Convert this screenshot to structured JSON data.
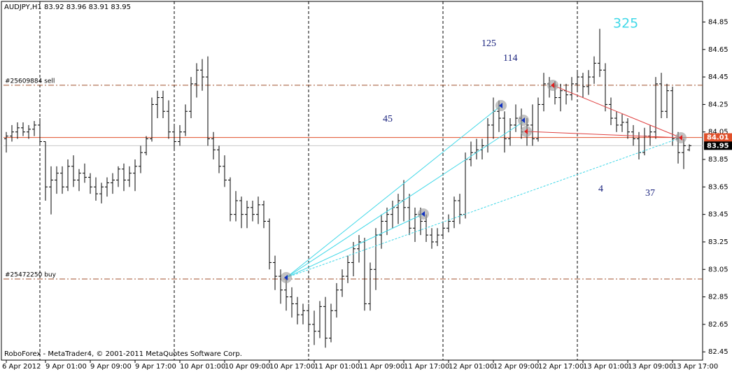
{
  "chart_data": {
    "type": "ohlc",
    "title": "AUDJPY,H1 83.92 83.96 83.91 83.95",
    "footer": "RoboForex - MetaTrader4, © 2001-2011 MetaQuotes Software Corp.",
    "color": "#000000",
    "grid": false,
    "ylim": [
      82.39,
      85.01
    ],
    "yticks": [
      82.45,
      82.65,
      82.85,
      83.05,
      83.25,
      83.45,
      83.65,
      83.85,
      84.05,
      84.25,
      84.45,
      84.65,
      84.85
    ],
    "categories": [
      "6 Apr 2012",
      null,
      null,
      null,
      null,
      null,
      null,
      "9 Apr 01:00",
      null,
      null,
      null,
      null,
      null,
      null,
      null,
      "9 Apr 09:00",
      null,
      null,
      null,
      null,
      null,
      null,
      null,
      "9 Apr 17:00",
      null,
      null,
      null,
      null,
      null,
      null,
      null,
      "10 Apr 01:00",
      null,
      null,
      null,
      null,
      null,
      null,
      null,
      "10 Apr 09:00",
      null,
      null,
      null,
      null,
      null,
      null,
      null,
      "10 Apr 17:00",
      null,
      null,
      null,
      null,
      null,
      null,
      null,
      "11 Apr 01:00",
      null,
      null,
      null,
      null,
      null,
      null,
      null,
      "11 Apr 09:00",
      null,
      null,
      null,
      null,
      null,
      null,
      null,
      "11 Apr 17:00",
      null,
      null,
      null,
      null,
      null,
      null,
      null,
      "12 Apr 01:00",
      null,
      null,
      null,
      null,
      null,
      null,
      null,
      "12 Apr 09:00",
      null,
      null,
      null,
      null,
      null,
      null,
      null,
      "12 Apr 17:00",
      null,
      null,
      null,
      null,
      null,
      null,
      null,
      "13 Apr 01:00",
      null,
      null,
      null,
      null,
      null,
      null,
      null,
      "13 Apr 09:00",
      null,
      null,
      null,
      null,
      null,
      null,
      null,
      "13 Apr 17:00",
      null,
      null,
      null
    ],
    "open": [
      84.0,
      84.02,
      84.05,
      84.08,
      84.05,
      84.07,
      84.1,
      83.98,
      83.65,
      83.7,
      83.75,
      83.65,
      83.8,
      83.7,
      83.75,
      83.72,
      83.65,
      83.6,
      83.65,
      83.68,
      83.7,
      83.78,
      83.7,
      83.75,
      83.8,
      83.9,
      84.0,
      84.25,
      84.3,
      84.2,
      84.05,
      83.98,
      84.05,
      84.2,
      84.4,
      84.5,
      84.45,
      84.0,
      83.92,
      83.8,
      83.7,
      83.45,
      83.55,
      83.45,
      83.5,
      83.45,
      83.52,
      83.4,
      83.1,
      83.0,
      82.9,
      82.85,
      82.8,
      82.72,
      82.75,
      82.65,
      82.6,
      82.78,
      82.55,
      82.75,
      82.9,
      83.0,
      83.1,
      83.2,
      83.25,
      82.8,
      83.05,
      83.3,
      83.4,
      83.45,
      83.5,
      83.55,
      83.5,
      83.35,
      83.45,
      83.4,
      83.3,
      83.25,
      83.3,
      83.35,
      83.4,
      83.55,
      83.45,
      83.85,
      83.9,
      83.92,
      83.95,
      84.1,
      84.2,
      84.15,
      84.0,
      84.1,
      84.15,
      84.05,
      84.1,
      84.0,
      84.25,
      84.4,
      84.38,
      84.3,
      84.35,
      84.32,
      84.4,
      84.45,
      84.38,
      84.45,
      84.55,
      84.5,
      84.25,
      84.15,
      84.1,
      84.12,
      84.05,
      84.0,
      83.9,
      84.02,
      84.05,
      84.4,
      84.2,
      84.35,
      84.0,
      83.9,
      83.92
    ],
    "high": [
      84.05,
      84.1,
      84.12,
      84.12,
      84.1,
      84.13,
      84.15,
      83.98,
      83.8,
      83.8,
      83.8,
      83.85,
      83.88,
      83.78,
      83.82,
      83.75,
      83.72,
      83.68,
      83.72,
      83.75,
      83.8,
      83.82,
      83.8,
      83.85,
      83.95,
      84.02,
      84.3,
      84.35,
      84.35,
      84.28,
      84.1,
      84.1,
      84.25,
      84.45,
      84.55,
      84.58,
      84.6,
      84.05,
      83.95,
      83.88,
      83.72,
      83.62,
      83.58,
      83.55,
      83.55,
      83.58,
      83.55,
      83.42,
      83.15,
      83.05,
      83.0,
      82.92,
      82.85,
      82.8,
      82.8,
      82.75,
      82.82,
      82.85,
      82.8,
      82.95,
      83.05,
      83.15,
      83.25,
      83.3,
      83.28,
      83.1,
      83.35,
      83.45,
      83.5,
      83.55,
      83.6,
      83.7,
      83.6,
      83.5,
      83.5,
      83.45,
      83.35,
      83.35,
      83.4,
      83.45,
      83.58,
      83.6,
      83.9,
      83.98,
      84.0,
      84.0,
      84.15,
      84.3,
      84.28,
      84.2,
      84.15,
      84.25,
      84.22,
      84.15,
      84.25,
      84.3,
      84.48,
      84.45,
      84.42,
      84.4,
      84.4,
      84.45,
      84.5,
      84.48,
      84.5,
      84.6,
      84.8,
      84.55,
      84.3,
      84.2,
      84.18,
      84.15,
      84.1,
      84.05,
      84.08,
      84.1,
      84.45,
      84.48,
      84.4,
      84.38,
      84.05,
      84.0,
      83.96
    ],
    "low": [
      83.9,
      83.98,
      84.0,
      84.02,
      84.0,
      84.02,
      83.95,
      83.55,
      83.45,
      83.6,
      83.6,
      83.62,
      83.65,
      83.62,
      83.68,
      83.6,
      83.55,
      83.53,
      83.58,
      83.6,
      83.65,
      83.62,
      83.65,
      83.62,
      83.75,
      83.88,
      83.98,
      84.15,
      84.15,
      84.0,
      83.92,
      83.95,
      84.02,
      84.15,
      84.3,
      84.35,
      83.95,
      83.85,
      83.75,
      83.65,
      83.4,
      83.4,
      83.35,
      83.35,
      83.4,
      83.38,
      83.35,
      83.05,
      82.9,
      82.8,
      82.75,
      82.7,
      82.65,
      82.65,
      82.6,
      82.5,
      82.55,
      82.48,
      82.52,
      82.7,
      82.85,
      82.95,
      83.0,
      83.1,
      82.75,
      82.75,
      82.9,
      83.2,
      83.3,
      83.35,
      83.38,
      83.4,
      83.3,
      83.25,
      83.3,
      83.25,
      83.2,
      83.22,
      83.28,
      83.32,
      83.35,
      83.38,
      83.42,
      83.8,
      83.85,
      83.85,
      83.9,
      84.0,
      84.05,
      83.9,
      83.95,
      84.05,
      84.0,
      83.95,
      83.95,
      83.98,
      84.2,
      84.3,
      84.25,
      84.2,
      84.25,
      84.28,
      84.35,
      84.3,
      84.32,
      84.4,
      84.45,
      84.2,
      84.1,
      84.05,
      84.05,
      84.0,
      83.95,
      83.85,
      83.88,
      83.95,
      84.0,
      84.15,
      84.15,
      83.95,
      83.82,
      83.78,
      83.91
    ],
    "close": [
      84.02,
      84.05,
      84.08,
      84.05,
      84.07,
      84.1,
      83.98,
      83.65,
      83.7,
      83.75,
      83.65,
      83.8,
      83.7,
      83.75,
      83.72,
      83.65,
      83.6,
      83.65,
      83.68,
      83.7,
      83.78,
      83.7,
      83.75,
      83.8,
      83.9,
      84.0,
      84.25,
      84.3,
      84.2,
      84.05,
      83.98,
      84.05,
      84.2,
      84.4,
      84.5,
      84.45,
      84.0,
      83.92,
      83.8,
      83.7,
      83.45,
      83.55,
      83.45,
      83.5,
      83.45,
      83.52,
      83.4,
      83.1,
      83.0,
      82.9,
      82.85,
      82.8,
      82.72,
      82.75,
      82.65,
      82.6,
      82.78,
      82.55,
      82.75,
      82.9,
      83.0,
      83.1,
      83.2,
      83.25,
      82.8,
      83.05,
      83.3,
      83.4,
      83.45,
      83.5,
      83.55,
      83.5,
      83.35,
      83.45,
      83.4,
      83.3,
      83.25,
      83.3,
      83.35,
      83.4,
      83.55,
      83.45,
      83.85,
      83.9,
      83.92,
      83.95,
      84.1,
      84.2,
      84.15,
      84.0,
      84.1,
      84.15,
      84.05,
      84.1,
      84.0,
      84.25,
      84.4,
      84.38,
      84.3,
      84.35,
      84.32,
      84.4,
      84.45,
      84.38,
      84.45,
      84.55,
      84.5,
      84.25,
      84.15,
      84.1,
      84.12,
      84.05,
      84.0,
      83.9,
      84.02,
      84.05,
      84.4,
      84.2,
      84.35,
      84.0,
      83.9,
      83.95,
      83.95
    ],
    "order_lines": [
      {
        "label": "#25609884 sell",
        "value": 84.39,
        "color": "#a0522d"
      },
      {
        "label": "#25472250 buy",
        "value": 82.98,
        "color": "#a0522d"
      }
    ],
    "price_markers": [
      {
        "value": 84.01,
        "color": "#e0502a"
      },
      {
        "value": 83.95,
        "color": "#000000"
      }
    ],
    "annotations": [
      {
        "text": "325",
        "color": "#40d8e8"
      },
      {
        "text": "125",
        "color": "#1a237e"
      },
      {
        "text": "114",
        "color": "#1a237e"
      },
      {
        "text": "45",
        "color": "#1a237e"
      },
      {
        "text": "4",
        "color": "#1a237e"
      },
      {
        "text": "37",
        "color": "#1a237e"
      }
    ]
  }
}
